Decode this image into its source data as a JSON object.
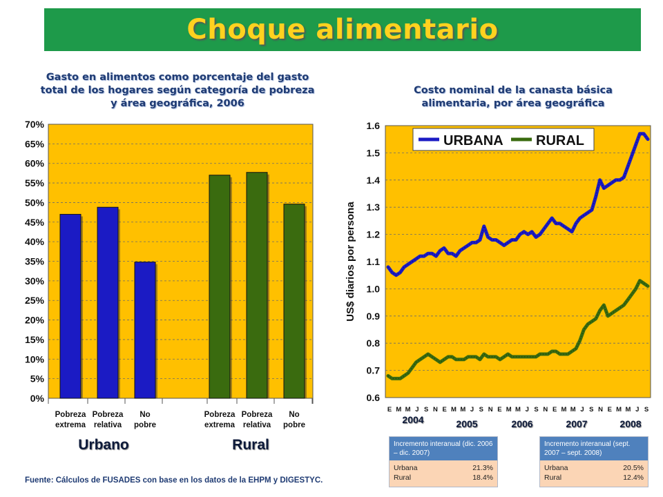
{
  "header": {
    "title": "Choque alimentario"
  },
  "left_chart_title": "Gasto en alimentos como porcentaje del gasto total de los hogares según categoría de pobreza y área geográfica, 2006",
  "right_chart_title": "Costo nominal de la canasta básica alimentaria, por área geográfica",
  "source_note": "Fuente: Cálculos de FUSADES con base en los datos de la EHPM y DIGESTYC.",
  "colors": {
    "banner": "#1e9a4a",
    "title": "#ffd21f",
    "plot_bg": "#ffc000",
    "urbano": "#1b1bc4",
    "rural": "#3a6b0f"
  },
  "chart_data": [
    {
      "type": "bar",
      "title": "Gasto en alimentos como porcentaje del gasto total de los hogares según categoría de pobreza y área geográfica, 2006",
      "ylim": [
        0,
        70
      ],
      "yticks": [
        "0%",
        "5%",
        "10%",
        "15%",
        "20%",
        "25%",
        "30%",
        "35%",
        "40%",
        "45%",
        "50%",
        "55%",
        "60%",
        "65%",
        "70%"
      ],
      "grid": true,
      "groups": [
        {
          "name": "Urbano",
          "categories": [
            [
              "Pobreza",
              "extrema"
            ],
            [
              "Pobreza",
              "relativa"
            ],
            [
              "No",
              "pobre"
            ]
          ],
          "values": [
            47,
            48.8,
            34.8
          ]
        },
        {
          "name": "Rural",
          "categories": [
            [
              "Pobreza",
              "extrema"
            ],
            [
              "Pobreza",
              "relativa"
            ],
            [
              "No",
              "pobre"
            ]
          ],
          "values": [
            57,
            57.7,
            49.6
          ]
        }
      ]
    },
    {
      "type": "line",
      "title": "Costo nominal de la canasta básica alimentaria, por área geográfica",
      "ylabel": "US$ diarios por persona",
      "ylim": [
        0.6,
        1.6
      ],
      "yticks": [
        "0.6",
        "0.7",
        "0.8",
        "0.9",
        "1.0",
        "1.1",
        "1.2",
        "1.3",
        "1.4",
        "1.5",
        "1.6"
      ],
      "grid": true,
      "legend_position": "top",
      "x_month_labels": [
        "E",
        "M",
        "M",
        "J",
        "S",
        "N",
        "E",
        "M",
        "M",
        "J",
        "S",
        "N",
        "E",
        "M",
        "M",
        "J",
        "S",
        "N",
        "E",
        "M",
        "M",
        "J",
        "S",
        "N",
        "E",
        "M",
        "M",
        "J",
        "S"
      ],
      "x_year_labels": [
        "2004",
        "2005",
        "2006",
        "2007",
        "2008"
      ],
      "series": [
        {
          "name": "URBANA",
          "values": [
            1.08,
            1.06,
            1.05,
            1.06,
            1.08,
            1.09,
            1.1,
            1.11,
            1.12,
            1.12,
            1.13,
            1.13,
            1.12,
            1.14,
            1.15,
            1.13,
            1.13,
            1.12,
            1.14,
            1.15,
            1.16,
            1.17,
            1.17,
            1.18,
            1.23,
            1.19,
            1.18,
            1.18,
            1.17,
            1.16,
            1.17,
            1.18,
            1.18,
            1.2,
            1.21,
            1.2,
            1.21,
            1.19,
            1.2,
            1.22,
            1.24,
            1.26,
            1.24,
            1.24,
            1.23,
            1.22,
            1.21,
            1.24,
            1.26,
            1.27,
            1.28,
            1.29,
            1.34,
            1.4,
            1.37,
            1.38,
            1.39,
            1.4,
            1.4,
            1.41,
            1.45,
            1.49,
            1.53,
            1.57,
            1.57,
            1.55
          ]
        },
        {
          "name": "RURAL",
          "values": [
            0.68,
            0.67,
            0.67,
            0.67,
            0.68,
            0.69,
            0.71,
            0.73,
            0.74,
            0.75,
            0.76,
            0.75,
            0.74,
            0.73,
            0.74,
            0.75,
            0.75,
            0.74,
            0.74,
            0.74,
            0.75,
            0.75,
            0.75,
            0.74,
            0.76,
            0.75,
            0.75,
            0.75,
            0.74,
            0.75,
            0.76,
            0.75,
            0.75,
            0.75,
            0.75,
            0.75,
            0.75,
            0.75,
            0.76,
            0.76,
            0.76,
            0.77,
            0.77,
            0.76,
            0.76,
            0.76,
            0.77,
            0.78,
            0.81,
            0.85,
            0.87,
            0.88,
            0.89,
            0.92,
            0.94,
            0.9,
            0.91,
            0.92,
            0.93,
            0.94,
            0.96,
            0.98,
            1.0,
            1.03,
            1.02,
            1.01
          ]
        }
      ]
    }
  ],
  "info_boxes": [
    {
      "title": "Incremento interanual (dic. 2006 – dic. 2007)",
      "rows": [
        {
          "label": "Urbana",
          "value": "21.3%"
        },
        {
          "label": "Rural",
          "value": "18.4%"
        }
      ]
    },
    {
      "title": "Incremento interanual (sept. 2007 – sept. 2008)",
      "rows": [
        {
          "label": "Urbana",
          "value": "20.5%"
        },
        {
          "label": "Rural",
          "value": "12.4%"
        }
      ]
    }
  ]
}
